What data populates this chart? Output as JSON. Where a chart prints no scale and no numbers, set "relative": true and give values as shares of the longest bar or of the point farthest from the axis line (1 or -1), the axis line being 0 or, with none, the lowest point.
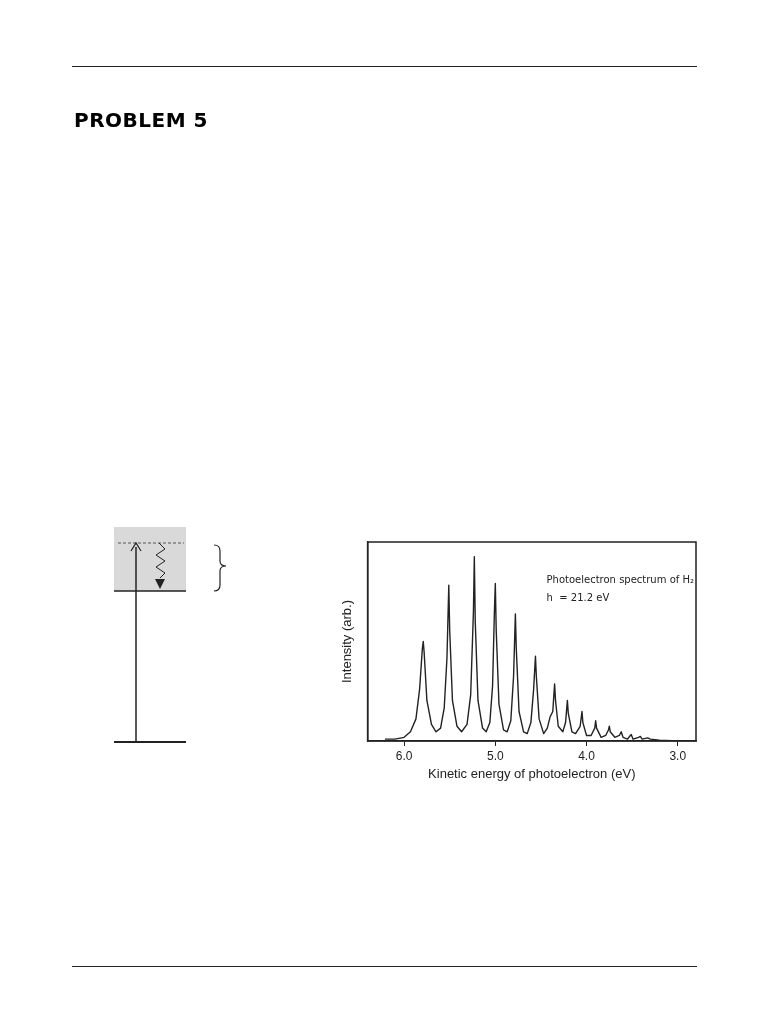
{
  "chart_data": {
    "type": "line",
    "title": "PROBLEM 5",
    "xlabel": "Kinetic energy of photoelectron (eV)",
    "ylabel": "Intensity (arb.)",
    "annotations": [
      "Photoelectron spectrum of H₂",
      "h  = 21.2 eV"
    ],
    "relative": true,
    "marker": "none",
    "color": "#222222",
    "xlim": [
      6.4,
      2.8
    ],
    "xticks": [
      {
        "value": 6,
        "label": "6.0"
      },
      {
        "value": 5,
        "label": "5.0"
      },
      {
        "value": 4,
        "label": "4.0"
      },
      {
        "value": 3,
        "label": "3.0"
      }
    ],
    "x": [
      6.21,
      6.1,
      6.0,
      5.93,
      5.87,
      5.83,
      5.8,
      5.79,
      5.78,
      5.75,
      5.7,
      5.65,
      5.6,
      5.56,
      5.53,
      5.51,
      5.5,
      5.47,
      5.42,
      5.37,
      5.31,
      5.27,
      5.24,
      5.23,
      5.22,
      5.19,
      5.14,
      5.1,
      5.06,
      5.03,
      5.01,
      5.0,
      4.99,
      4.96,
      4.91,
      4.87,
      4.83,
      4.8,
      4.78,
      4.77,
      4.74,
      4.69,
      4.65,
      4.61,
      4.58,
      4.56,
      4.55,
      4.52,
      4.47,
      4.43,
      4.4,
      4.37,
      4.35,
      4.34,
      4.31,
      4.26,
      4.23,
      4.21,
      4.2,
      4.16,
      4.12,
      4.07,
      4.05,
      4.04,
      4.0,
      3.95,
      3.91,
      3.9,
      3.89,
      3.84,
      3.79,
      3.76,
      3.75,
      3.74,
      3.69,
      3.64,
      3.62,
      3.6,
      3.55,
      3.52,
      3.51,
      3.49,
      3.43,
      3.41,
      3.39,
      3.33,
      3.3,
      3.2,
      3.0,
      2.8
    ],
    "values": [
      0.01,
      0.01,
      0.02,
      0.05,
      0.12,
      0.28,
      0.5,
      0.54,
      0.48,
      0.22,
      0.09,
      0.05,
      0.07,
      0.18,
      0.45,
      0.845,
      0.6,
      0.22,
      0.08,
      0.05,
      0.09,
      0.25,
      0.7,
      1.0,
      0.65,
      0.22,
      0.07,
      0.05,
      0.1,
      0.3,
      0.7,
      0.855,
      0.6,
      0.2,
      0.06,
      0.05,
      0.11,
      0.35,
      0.69,
      0.5,
      0.16,
      0.05,
      0.04,
      0.1,
      0.28,
      0.46,
      0.35,
      0.12,
      0.04,
      0.07,
      0.13,
      0.16,
      0.31,
      0.22,
      0.08,
      0.05,
      0.1,
      0.22,
      0.15,
      0.05,
      0.04,
      0.08,
      0.16,
      0.1,
      0.03,
      0.03,
      0.07,
      0.11,
      0.07,
      0.02,
      0.03,
      0.06,
      0.08,
      0.05,
      0.02,
      0.03,
      0.05,
      0.02,
      0.01,
      0.03,
      0.035,
      0.01,
      0.02,
      0.025,
      0.01,
      0.017,
      0.01,
      0.005,
      0,
      0
    ]
  }
}
